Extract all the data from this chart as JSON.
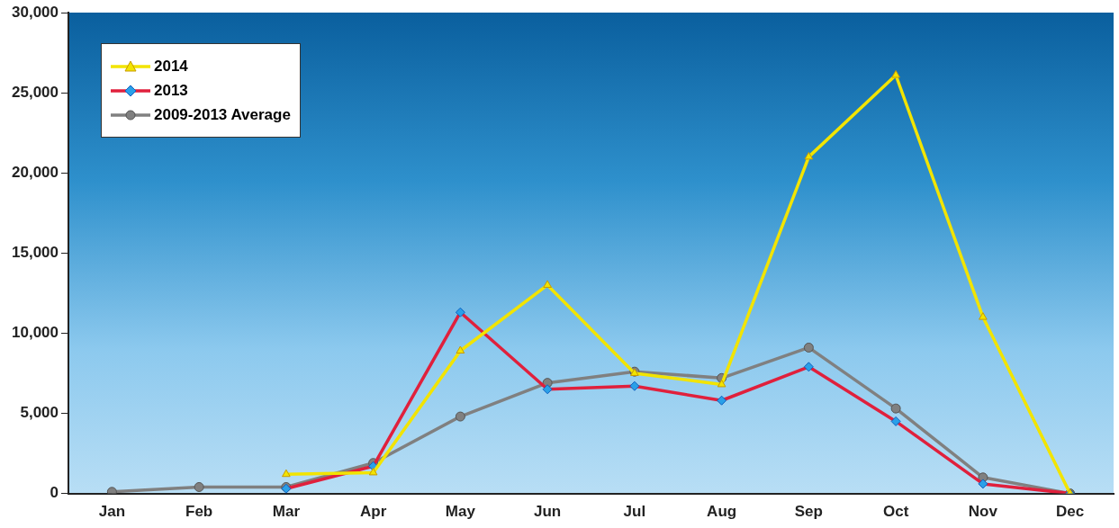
{
  "chart_data": {
    "type": "line",
    "categories": [
      "Jan",
      "Feb",
      "Mar",
      "Apr",
      "May",
      "Jun",
      "Jul",
      "Aug",
      "Sep",
      "Oct",
      "Nov",
      "Dec"
    ],
    "series": [
      {
        "name": "2014",
        "color": "#f2e400",
        "marker": "triangle",
        "values": [
          null,
          null,
          1200,
          1300,
          8900,
          13000,
          7500,
          6800,
          21000,
          26100,
          11000,
          0
        ]
      },
      {
        "name": "2013",
        "color": "#e0203c",
        "marker": "diamond",
        "values": [
          null,
          null,
          300,
          1700,
          11300,
          6500,
          6700,
          5800,
          7900,
          4500,
          600,
          0
        ]
      },
      {
        "name": "2009-2013 Average",
        "color": "#808080",
        "marker": "circle",
        "values": [
          100,
          400,
          400,
          1900,
          4800,
          6900,
          7600,
          7200,
          9100,
          5300,
          1000,
          0
        ]
      }
    ],
    "ylim": [
      0,
      30000
    ],
    "yticks": [
      0,
      {
        "value": 5000,
        "label": "5,000"
      },
      {
        "value": 10000,
        "label": "10,000"
      },
      {
        "value": 15000,
        "label": "15,000"
      },
      {
        "value": 20000,
        "label": "20,000"
      },
      {
        "value": 25000,
        "label": "25,000"
      },
      {
        "value": 30000,
        "label": "30,000"
      }
    ],
    "grid": false,
    "legend": "top left"
  }
}
